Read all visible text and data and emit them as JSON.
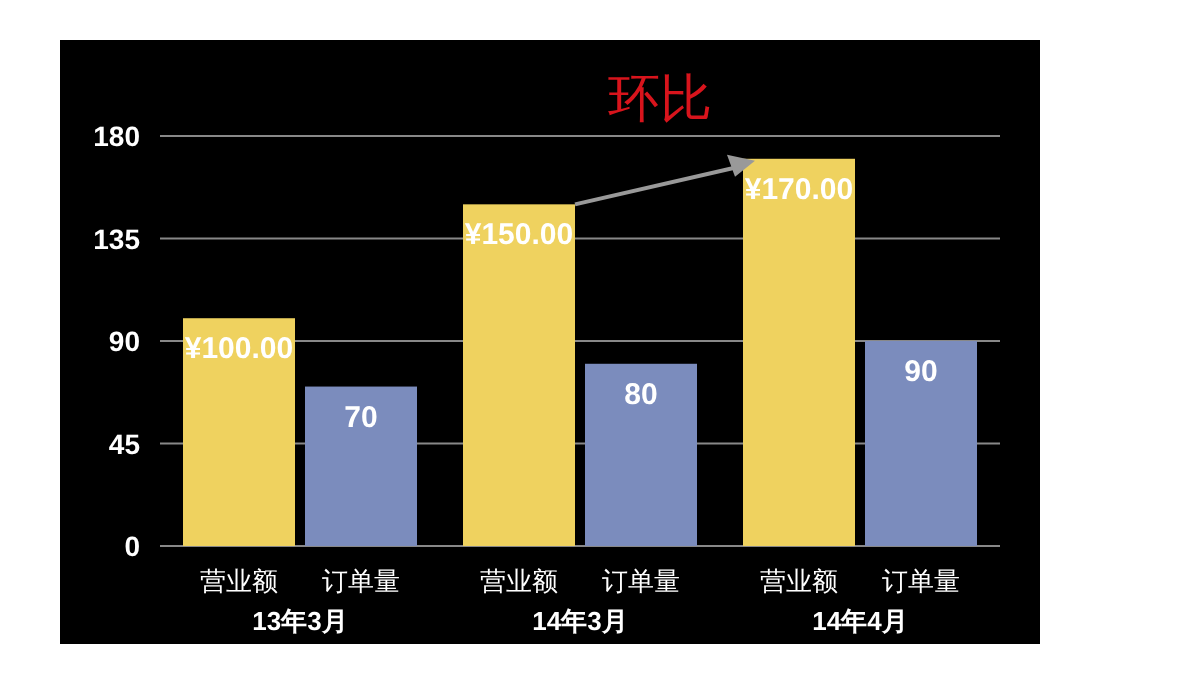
{
  "chart_data": {
    "type": "bar",
    "categories": [
      "13年3月",
      "14年3月",
      "14年4月"
    ],
    "series": [
      {
        "name": "营业额",
        "color": "#efd25f",
        "values": [
          100,
          150,
          170
        ],
        "value_labels": [
          "¥100.00",
          "¥150.00",
          "¥170.00"
        ]
      },
      {
        "name": "订单量",
        "color": "#7b8cbd",
        "values": [
          70,
          80,
          90
        ],
        "value_labels": [
          "70",
          "80",
          "90"
        ]
      }
    ],
    "ylim": [
      0,
      180
    ],
    "yticks": [
      0,
      45,
      90,
      135,
      180
    ],
    "grid": "y",
    "annotations": [
      {
        "text": "环比",
        "x": "14年4月",
        "y": 170
      }
    ]
  }
}
